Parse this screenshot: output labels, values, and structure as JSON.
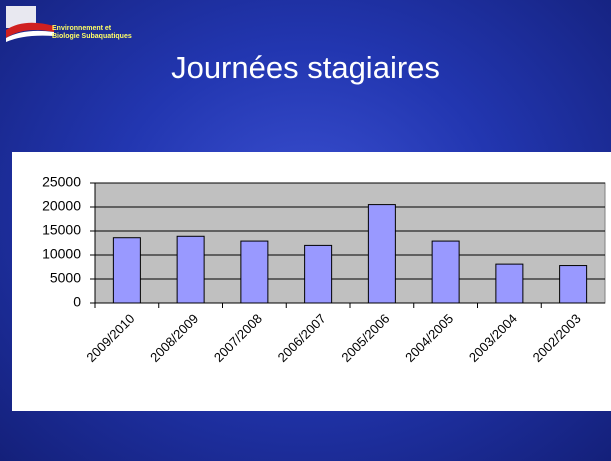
{
  "logo": {
    "line1": "Environnement et",
    "line2": "Biologie Subaquatiques"
  },
  "chart_data": {
    "type": "bar",
    "title": "Journées stagiaires",
    "categories": [
      "2009/2010",
      "2008/2009",
      "2007/2008",
      "2006/2007",
      "2005/2006",
      "2004/2005",
      "2003/2004",
      "2002/2003"
    ],
    "values": [
      13600,
      13900,
      12900,
      12000,
      20500,
      12900,
      8100,
      7800
    ],
    "color": "#9999ff",
    "ylim": [
      0,
      25000
    ],
    "yticks": [
      0,
      5000,
      10000,
      15000,
      20000,
      25000
    ],
    "grid": true
  }
}
